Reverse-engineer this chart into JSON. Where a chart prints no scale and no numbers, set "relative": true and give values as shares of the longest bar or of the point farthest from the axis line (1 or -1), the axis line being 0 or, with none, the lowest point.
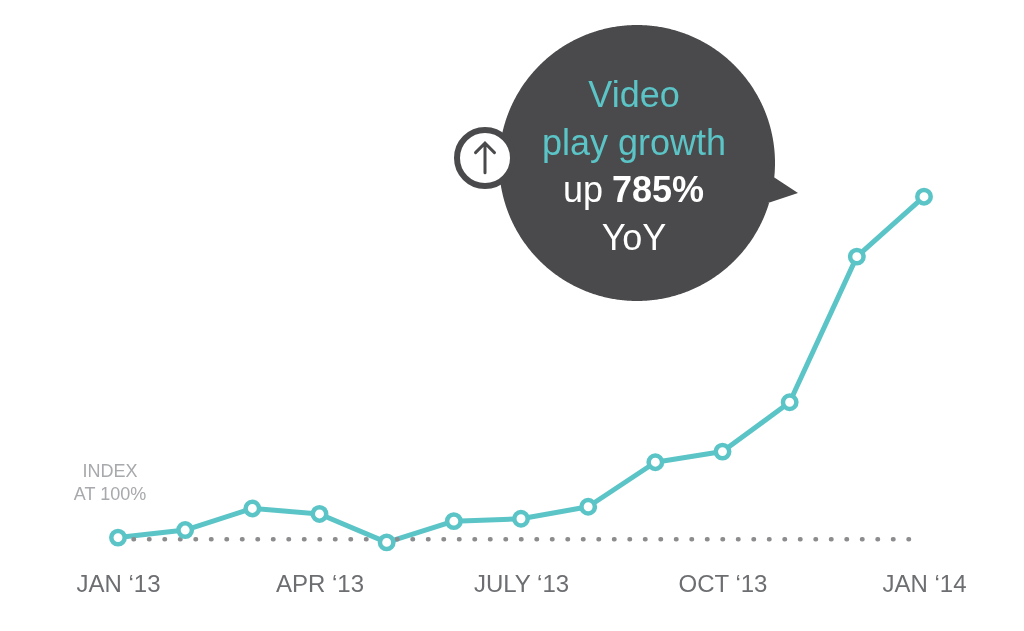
{
  "chart_data": {
    "type": "line",
    "relative": true,
    "categories": [
      "JAN ‘13",
      null,
      null,
      "APR ‘13",
      null,
      null,
      "JULY ‘13",
      null,
      null,
      "OCT ‘13",
      null,
      null,
      "JAN ‘14"
    ],
    "series": [
      {
        "color": "#5bc4c7",
        "values": [
          0.005,
          0.027,
          0.09,
          0.074,
          -0.009,
          0.053,
          0.06,
          0.095,
          0.225,
          0.256,
          0.4,
          0.825,
          1
        ]
      }
    ],
    "marker": "circle",
    "line_style": "solid",
    "ref_lines": [
      {
        "axis": "y",
        "value": 0,
        "label": "INDEX AT 100%",
        "color": "#8c8c8e",
        "line_style": "dotted"
      }
    ],
    "annotations": [
      "Video play growth",
      "up 785% YoY"
    ]
  }
}
